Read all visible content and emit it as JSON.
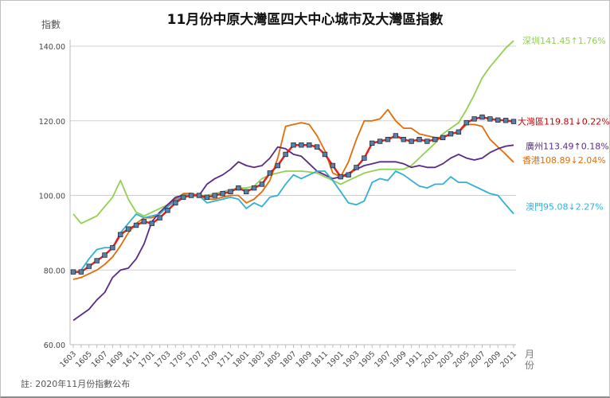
{
  "chart_data": {
    "type": "line",
    "title": "11月份中原大灣區四大中心城市及大灣區指數",
    "ylabel": "指數",
    "xlabel": "月份",
    "note": "註: 2020年11月份指數公布",
    "ylim": [
      60,
      140
    ],
    "yticks": [
      "60.00",
      "80.00",
      "100.00",
      "120.00",
      "140.00"
    ],
    "grid": true,
    "x": [
      "1603",
      "1604",
      "1605",
      "1606",
      "1607",
      "1608",
      "1609",
      "1610",
      "1611",
      "1612",
      "1701",
      "1702",
      "1703",
      "1704",
      "1705",
      "1706",
      "1707",
      "1708",
      "1709",
      "1710",
      "1711",
      "1712",
      "1801",
      "1802",
      "1803",
      "1804",
      "1805",
      "1806",
      "1807",
      "1808",
      "1809",
      "1810",
      "1811",
      "1812",
      "1901",
      "1902",
      "1903",
      "1904",
      "1905",
      "1906",
      "1907",
      "1908",
      "1909",
      "1910",
      "1911",
      "1912",
      "2001",
      "2002",
      "2003",
      "2004",
      "2005",
      "2006",
      "2007",
      "2008",
      "2009",
      "2010",
      "2011"
    ],
    "xtick_step": 2,
    "series": [
      {
        "name": "深圳",
        "color": "#92D050",
        "label": "深圳141.45↑1.76%",
        "label_color": "#92D050",
        "values": [
          95,
          92.5,
          93.5,
          94.5,
          97,
          99.5,
          104,
          99,
          95.5,
          94.5,
          95.5,
          96.5,
          97.5,
          99,
          100.5,
          100.5,
          100,
          100,
          100.5,
          101,
          101.5,
          102,
          102,
          102.5,
          104.5,
          105.5,
          106,
          106.5,
          106.5,
          106.5,
          106.3,
          106,
          105,
          104,
          103,
          104,
          105,
          106,
          106.5,
          107,
          107,
          107,
          107,
          108,
          110,
          112,
          114,
          116.5,
          118,
          119.5,
          123,
          127,
          131.5,
          134.5,
          137,
          139.5,
          141.45
        ]
      },
      {
        "name": "香港",
        "color": "#E36C09",
        "label": "香港108.89↓2.04%",
        "label_color": "#E36C09",
        "values": [
          77.5,
          78,
          79,
          80,
          81.5,
          83.5,
          86.5,
          90,
          92.5,
          94,
          94,
          95,
          97,
          99,
          100.5,
          100.5,
          100,
          99,
          99,
          99.5,
          100,
          100,
          98,
          99,
          101,
          104,
          110,
          118.5,
          119,
          119.5,
          119,
          116,
          112,
          106,
          105,
          109,
          115,
          120,
          120,
          120.5,
          123,
          120,
          118,
          118,
          116.5,
          116,
          115.5,
          115.5,
          116.5,
          117,
          119,
          119,
          118.5,
          115,
          113,
          111,
          108.89
        ]
      },
      {
        "name": "廣州",
        "color": "#5B2A86",
        "label": "廣州113.49↑0.18%",
        "label_color": "#5B2A86",
        "values": [
          66.5,
          68,
          69.5,
          72,
          74,
          78,
          80,
          80.5,
          83,
          87,
          93,
          95.5,
          97.5,
          99.5,
          100,
          100,
          100,
          103,
          104.5,
          105.5,
          107,
          109,
          108,
          107.5,
          108,
          110,
          113,
          112.5,
          111,
          110.5,
          108.5,
          106.5,
          105.5,
          104.5,
          105,
          106,
          107,
          108,
          108.5,
          109,
          109,
          109,
          108.5,
          107.5,
          108,
          107.5,
          107.5,
          108.5,
          110,
          111,
          110,
          109.5,
          110,
          111.5,
          112.5,
          113.2,
          113.49
        ]
      },
      {
        "name": "澳門",
        "color": "#31B0D5",
        "label": "澳門95.08↓2.27%",
        "label_color": "#31B0D5",
        "values": [
          79,
          80,
          83,
          85.5,
          86,
          86,
          90,
          92.5,
          95,
          94,
          94.5,
          95,
          97,
          98.5,
          100,
          100,
          100,
          98,
          98.5,
          99,
          99.5,
          99,
          96.5,
          98,
          97,
          99.5,
          100,
          103,
          105.5,
          104.5,
          105.5,
          106.5,
          106.5,
          104,
          101,
          98,
          97.5,
          98.5,
          103.5,
          104.5,
          104,
          106.5,
          105.5,
          104,
          102.5,
          102,
          103,
          103,
          105,
          103.5,
          103.5,
          102.5,
          101.5,
          100.5,
          100,
          97.5,
          95.08
        ]
      },
      {
        "name": "大灣區",
        "color": "#E8211B",
        "marker_color": "#5B7FA6",
        "label": "大灣區119.81↓0.22%",
        "label_color": "#C00000",
        "values": [
          79.5,
          79.5,
          81,
          82.5,
          84,
          86,
          89.5,
          91,
          92,
          93,
          92.5,
          94,
          96,
          98,
          99.5,
          100,
          100,
          99.5,
          100,
          100.5,
          101,
          102,
          101,
          102,
          103,
          106,
          108,
          111,
          113.5,
          113.5,
          113.5,
          113,
          111,
          108,
          105,
          105.5,
          107.5,
          110,
          114,
          114.5,
          115,
          116,
          115,
          114.5,
          115,
          114.5,
          115,
          115.5,
          116.5,
          117,
          119.5,
          120.5,
          121,
          120.5,
          120.2,
          120.1,
          119.81
        ]
      }
    ]
  }
}
